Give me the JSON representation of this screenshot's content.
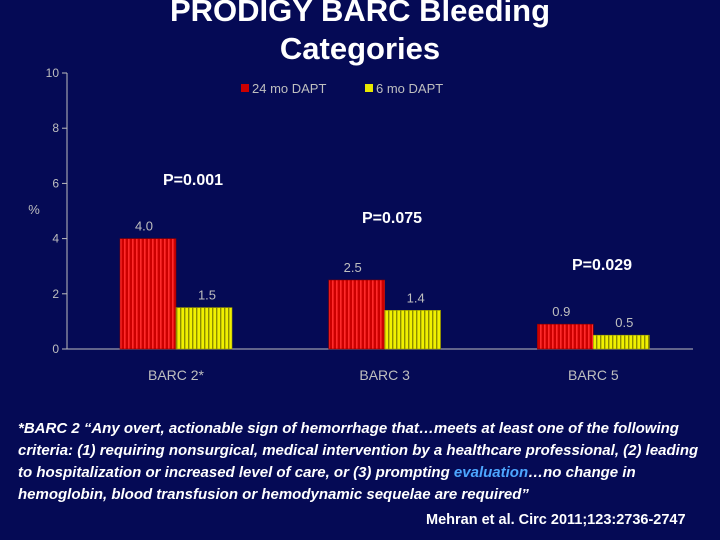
{
  "slide": {
    "title": "PRODIGY BARC Bleeding Categories"
  },
  "chart_data": {
    "type": "bar",
    "ylabel": "%",
    "ylim": [
      0,
      10
    ],
    "yticks": [
      "0",
      "2",
      "4",
      "6",
      "8",
      "10"
    ],
    "categories": [
      "BARC 2*",
      "BARC 3",
      "BARC 5"
    ],
    "series": [
      {
        "name": "24 mo DAPT",
        "values": [
          4.0,
          2.5,
          0.9
        ],
        "labels": [
          "4.0",
          "2.5",
          "0.9"
        ],
        "color": "#cc0000"
      },
      {
        "name": "6 mo DAPT",
        "values": [
          1.5,
          1.4,
          0.5
        ],
        "labels": [
          "1.5",
          "1.4",
          "0.5"
        ],
        "color": "#e8e800"
      }
    ],
    "p_values": [
      "P=0.001",
      "P=0.075",
      "P=0.029"
    ],
    "legend_position": "top"
  },
  "caption": {
    "part1": "*BARC 2 “Any overt, actionable sign of hemorrhage that…meets at least one of the following criteria: (1) requiring nonsurgical, medical intervention by a healthcare professional, (2) leading to hospitalization or increased level of care, or (3) prompting ",
    "highlight": "evaluation",
    "part2": "…no change in hemoglobin, blood transfusion or hemodynamic sequelae are required”"
  },
  "citation": "Mehran et al. Circ 2011;123:2736-2747",
  "colors": {
    "background": "#050a55",
    "axis": "#bfbfbf",
    "highlight": "#4da6ff"
  }
}
